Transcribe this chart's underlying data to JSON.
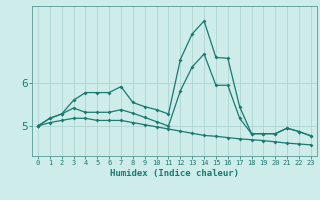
{
  "xlabel": "Humidex (Indice chaleur)",
  "background_color": "#cdecea",
  "grid_color": "#aed4d0",
  "line_color": "#1a7a6e",
  "x": [
    0,
    1,
    2,
    3,
    4,
    5,
    6,
    7,
    8,
    9,
    10,
    11,
    12,
    13,
    14,
    15,
    16,
    17,
    18,
    19,
    20,
    21,
    22,
    23
  ],
  "line1": [
    5.0,
    5.18,
    5.28,
    5.6,
    5.78,
    5.78,
    5.78,
    5.92,
    5.55,
    5.45,
    5.38,
    5.28,
    6.55,
    7.15,
    7.45,
    6.6,
    6.58,
    5.45,
    4.82,
    4.82,
    4.82,
    4.95,
    4.87,
    4.77
  ],
  "line2": [
    5.0,
    5.18,
    5.28,
    5.42,
    5.32,
    5.32,
    5.32,
    5.38,
    5.3,
    5.2,
    5.1,
    5.0,
    5.82,
    6.38,
    6.68,
    5.95,
    5.95,
    5.18,
    4.82,
    4.82,
    4.82,
    4.95,
    4.87,
    4.77
  ],
  "line3": [
    5.0,
    5.08,
    5.13,
    5.18,
    5.18,
    5.13,
    5.13,
    5.13,
    5.08,
    5.03,
    4.98,
    4.93,
    4.88,
    4.83,
    4.78,
    4.76,
    4.73,
    4.7,
    4.68,
    4.66,
    4.63,
    4.6,
    4.58,
    4.56
  ],
  "yticks": [
    5,
    6
  ],
  "ylim": [
    4.3,
    7.8
  ],
  "xlim": [
    -0.5,
    23.5
  ]
}
